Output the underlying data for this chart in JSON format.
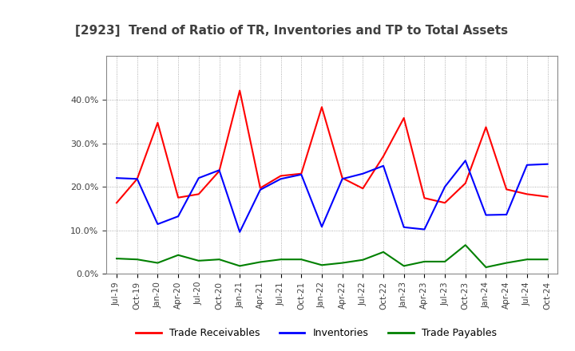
{
  "title": "[2923]  Trend of Ratio of TR, Inventories and TP to Total Assets",
  "x_labels": [
    "Jul-19",
    "Oct-19",
    "Jan-20",
    "Apr-20",
    "Jul-20",
    "Oct-20",
    "Jan-21",
    "Apr-21",
    "Jul-21",
    "Oct-21",
    "Jan-22",
    "Apr-22",
    "Jul-22",
    "Oct-22",
    "Jan-23",
    "Apr-23",
    "Jul-23",
    "Oct-23",
    "Jan-24",
    "Apr-24",
    "Jul-24",
    "Oct-24"
  ],
  "trade_receivables": [
    0.163,
    0.218,
    0.347,
    0.175,
    0.183,
    0.236,
    0.421,
    0.197,
    0.225,
    0.23,
    0.383,
    0.22,
    0.196,
    0.27,
    0.358,
    0.174,
    0.163,
    0.208,
    0.337,
    0.194,
    0.183,
    0.177
  ],
  "inventories": [
    0.22,
    0.218,
    0.114,
    0.132,
    0.22,
    0.238,
    0.096,
    0.193,
    0.218,
    0.228,
    0.108,
    0.218,
    0.23,
    0.248,
    0.107,
    0.102,
    0.2,
    0.26,
    0.135,
    0.136,
    0.25,
    0.252
  ],
  "trade_payables": [
    0.035,
    0.033,
    0.025,
    0.043,
    0.03,
    0.033,
    0.018,
    0.027,
    0.033,
    0.033,
    0.02,
    0.025,
    0.032,
    0.05,
    0.018,
    0.028,
    0.028,
    0.066,
    0.015,
    0.025,
    0.033,
    0.033
  ],
  "ylim": [
    0.0,
    0.5
  ],
  "yticks": [
    0.0,
    0.1,
    0.2,
    0.3,
    0.4
  ],
  "line_colors": {
    "trade_receivables": "#FF0000",
    "inventories": "#0000FF",
    "trade_payables": "#008000"
  },
  "legend_labels": [
    "Trade Receivables",
    "Inventories",
    "Trade Payables"
  ],
  "title_color": "#404040",
  "background_color": "#FFFFFF",
  "plot_bg_color": "#FFFFFF",
  "grid_color": "#999999",
  "spine_color": "#888888"
}
